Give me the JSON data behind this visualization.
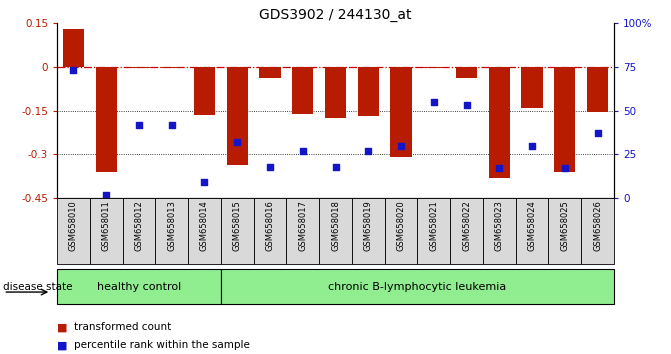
{
  "title": "GDS3902 / 244130_at",
  "samples": [
    "GSM658010",
    "GSM658011",
    "GSM658012",
    "GSM658013",
    "GSM658014",
    "GSM658015",
    "GSM658016",
    "GSM658017",
    "GSM658018",
    "GSM658019",
    "GSM658020",
    "GSM658021",
    "GSM658022",
    "GSM658023",
    "GSM658024",
    "GSM658025",
    "GSM658026"
  ],
  "bar_values": [
    0.13,
    -0.36,
    -0.005,
    -0.005,
    -0.165,
    -0.335,
    -0.04,
    -0.16,
    -0.175,
    -0.17,
    -0.31,
    -0.005,
    -0.04,
    -0.38,
    -0.14,
    -0.36,
    -0.155
  ],
  "dot_values_pct": [
    0.73,
    0.02,
    0.42,
    0.42,
    0.09,
    0.32,
    0.18,
    0.27,
    0.18,
    0.27,
    0.3,
    0.55,
    0.53,
    0.17,
    0.3,
    0.17,
    0.37
  ],
  "group_labels": [
    "healthy control",
    "chronic B-lymphocytic leukemia"
  ],
  "group_sizes": [
    5,
    12
  ],
  "ylim": [
    -0.45,
    0.15
  ],
  "yticks": [
    0.15,
    0.0,
    -0.15,
    -0.3,
    -0.45
  ],
  "ytick_labels": [
    "0.15",
    "0",
    "-0.15",
    "-0.3",
    "-0.45"
  ],
  "right_ytick_pcts": [
    100,
    75,
    50,
    25,
    0
  ],
  "right_ytick_labels": [
    "100%",
    "75",
    "50",
    "25",
    "0"
  ],
  "bar_color": "#b81c00",
  "dot_color": "#1414c8",
  "zero_line_color": "#cc0000",
  "bar_width": 0.65,
  "legend_red_label": "transformed count",
  "legend_blue_label": "percentile rank within the sample",
  "hc_color": "#90ee90",
  "label_box_color": "#d9d9d9"
}
